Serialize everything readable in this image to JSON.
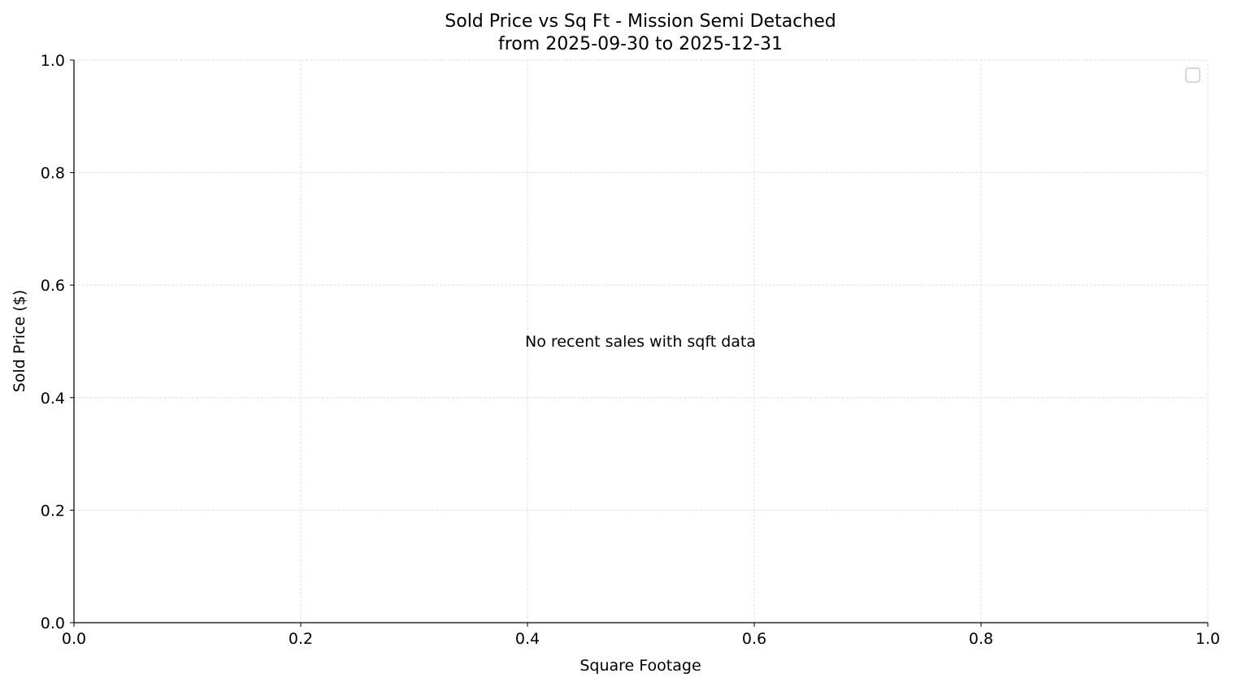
{
  "chart_data": {
    "type": "scatter",
    "title": "Sold Price vs Sq Ft - Mission Semi Detached",
    "subtitle": "from 2025-09-30 to 2025-12-31",
    "xlabel": "Square Footage",
    "ylabel": "Sold Price ($)",
    "xlim": [
      0,
      1
    ],
    "ylim": [
      0,
      1
    ],
    "xticks": [
      "0.0",
      "0.2",
      "0.4",
      "0.6",
      "0.8",
      "1.0"
    ],
    "yticks": [
      "0.0",
      "0.2",
      "0.4",
      "0.6",
      "0.8",
      "1.0"
    ],
    "grid": true,
    "legend": "top-right",
    "legend_entries": [],
    "series": [],
    "annotation": "No recent sales with sqft data",
    "colors": {
      "grid": "#d9d9d9",
      "axis": "#000000",
      "legend_border": "#cccccc"
    }
  }
}
